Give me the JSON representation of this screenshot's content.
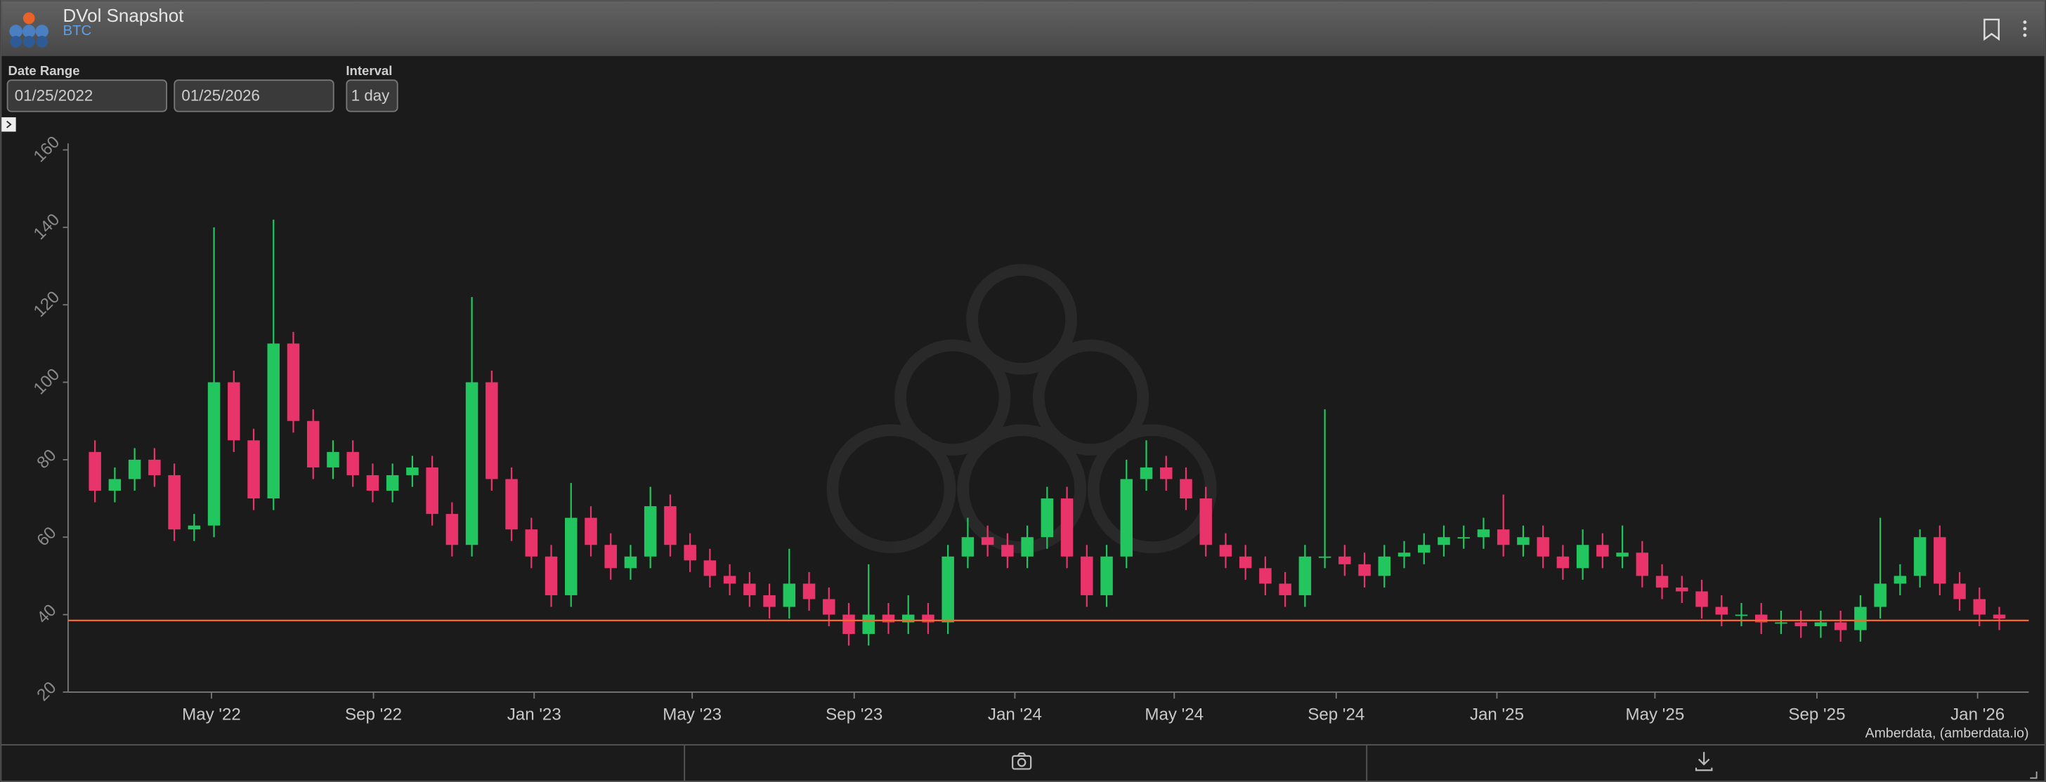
{
  "header": {
    "title": "DVol Snapshot",
    "subtitle": "BTC"
  },
  "controls": {
    "date_range_label": "Date Range",
    "start_date": "01/25/2022",
    "end_date": "01/25/2026",
    "interval_label": "Interval",
    "interval": "1 day"
  },
  "chart_data": {
    "type": "candlestick",
    "up_color": "#22c55e",
    "down_color": "#e8336b",
    "open": [
      82,
      72,
      75,
      80,
      76,
      62,
      63,
      100,
      85,
      70,
      110,
      90,
      78,
      82,
      76,
      72,
      76,
      78,
      66,
      58,
      100,
      75,
      62,
      55,
      45,
      65,
      58,
      52,
      55,
      68,
      58,
      54,
      50,
      48,
      45,
      42,
      48,
      44,
      40,
      35,
      40,
      38,
      40,
      38,
      55,
      60,
      58,
      55,
      60,
      70,
      55,
      45,
      55,
      75,
      78,
      75,
      70,
      58,
      55,
      52,
      48,
      45,
      55,
      55,
      53,
      50,
      55,
      56,
      58,
      60,
      60,
      62,
      58,
      60,
      55,
      52,
      58,
      55,
      56,
      50,
      47,
      46,
      42,
      40,
      40,
      38,
      38,
      37,
      38,
      36,
      42,
      48,
      50,
      60,
      48,
      44,
      40
    ],
    "high": [
      85,
      78,
      83,
      83,
      79,
      66,
      140,
      103,
      88,
      142,
      113,
      93,
      85,
      85,
      79,
      79,
      81,
      81,
      69,
      122,
      103,
      78,
      65,
      58,
      74,
      68,
      61,
      58,
      73,
      71,
      61,
      57,
      53,
      51,
      48,
      57,
      51,
      47,
      43,
      53,
      43,
      45,
      43,
      58,
      65,
      63,
      61,
      63,
      73,
      73,
      58,
      58,
      80,
      85,
      81,
      78,
      73,
      61,
      58,
      55,
      51,
      58,
      93,
      58,
      56,
      58,
      59,
      61,
      63,
      63,
      65,
      71,
      63,
      63,
      58,
      62,
      61,
      63,
      59,
      53,
      50,
      49,
      45,
      43,
      43,
      41,
      41,
      41,
      41,
      45,
      65,
      53,
      62,
      63,
      51,
      47,
      42
    ],
    "low": [
      69,
      69,
      72,
      73,
      59,
      59,
      60,
      82,
      67,
      67,
      87,
      75,
      75,
      73,
      69,
      69,
      73,
      63,
      55,
      55,
      72,
      59,
      52,
      42,
      42,
      55,
      49,
      49,
      52,
      55,
      51,
      47,
      45,
      42,
      39,
      39,
      41,
      37,
      32,
      32,
      35,
      35,
      35,
      35,
      52,
      55,
      52,
      52,
      57,
      52,
      42,
      42,
      52,
      72,
      72,
      67,
      55,
      52,
      49,
      45,
      42,
      42,
      52,
      50,
      47,
      47,
      52,
      53,
      55,
      57,
      57,
      55,
      55,
      52,
      49,
      49,
      52,
      52,
      47,
      44,
      43,
      39,
      37,
      37,
      35,
      35,
      34,
      34,
      33,
      33,
      39,
      45,
      47,
      45,
      41,
      37,
      36
    ],
    "close": [
      72,
      75,
      80,
      76,
      62,
      63,
      100,
      85,
      70,
      110,
      90,
      78,
      82,
      76,
      72,
      76,
      78,
      66,
      58,
      100,
      75,
      62,
      55,
      45,
      65,
      58,
      52,
      55,
      68,
      58,
      54,
      50,
      48,
      45,
      42,
      48,
      44,
      40,
      35,
      40,
      38,
      40,
      38,
      55,
      60,
      58,
      55,
      60,
      70,
      55,
      45,
      55,
      75,
      78,
      75,
      70,
      58,
      55,
      52,
      48,
      45,
      55,
      55,
      53,
      50,
      55,
      56,
      58,
      60,
      60,
      62,
      58,
      60,
      55,
      52,
      58,
      55,
      56,
      50,
      47,
      46,
      42,
      40,
      40,
      38,
      38,
      37,
      38,
      36,
      42,
      48,
      50,
      60,
      48,
      44,
      40,
      39
    ],
    "ylim": [
      20,
      160
    ],
    "yticks": [
      20,
      40,
      60,
      80,
      100,
      120,
      140,
      160
    ],
    "xticks": [
      {
        "value": "2022-05",
        "label": "May '22"
      },
      {
        "value": "2022-09",
        "label": "Sep '22"
      },
      {
        "value": "2023-01",
        "label": "Jan '23"
      },
      {
        "value": "2023-05",
        "label": "May '23"
      },
      {
        "value": "2023-09",
        "label": "Sep '23"
      },
      {
        "value": "2024-01",
        "label": "Jan '24"
      },
      {
        "value": "2024-05",
        "label": "May '24"
      },
      {
        "value": "2024-09",
        "label": "Sep '24"
      },
      {
        "value": "2025-01",
        "label": "Jan '25"
      },
      {
        "value": "2025-05",
        "label": "May '25"
      },
      {
        "value": "2025-09",
        "label": "Sep '25"
      },
      {
        "value": "2026-01",
        "label": "Jan '26"
      }
    ],
    "reference_line": 38.5,
    "reference_color": "#f26a2e",
    "credit": "Amberdata, (amberdata.io)"
  }
}
